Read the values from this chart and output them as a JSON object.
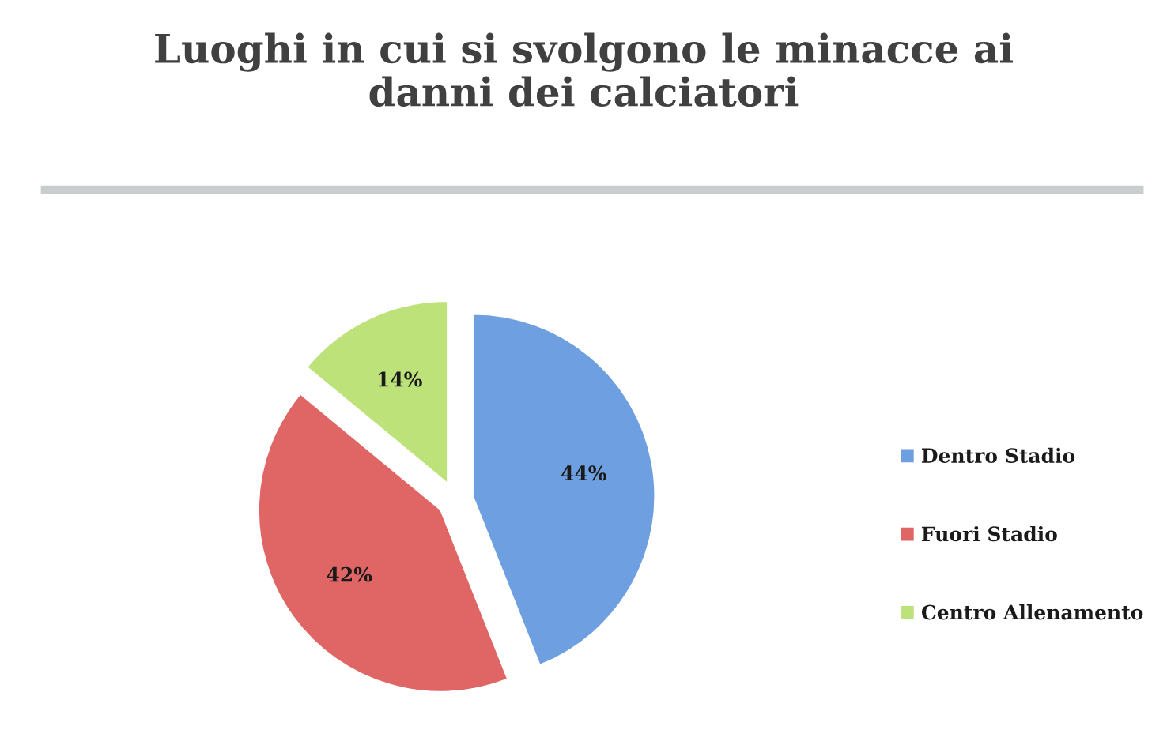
{
  "chart_data": {
    "type": "pie",
    "title": "Luoghi in cui si svolgono le minacce ai danni dei calciatori",
    "categories": [
      "Dentro Stadio",
      "Fuori Stadio",
      "Centro Allenamento"
    ],
    "values": [
      44,
      42,
      14
    ],
    "colors": [
      "#6e9fe0",
      "#e06666",
      "#bde27a"
    ],
    "value_labels": [
      "44%",
      "42%",
      "14%"
    ],
    "legend": "right"
  }
}
